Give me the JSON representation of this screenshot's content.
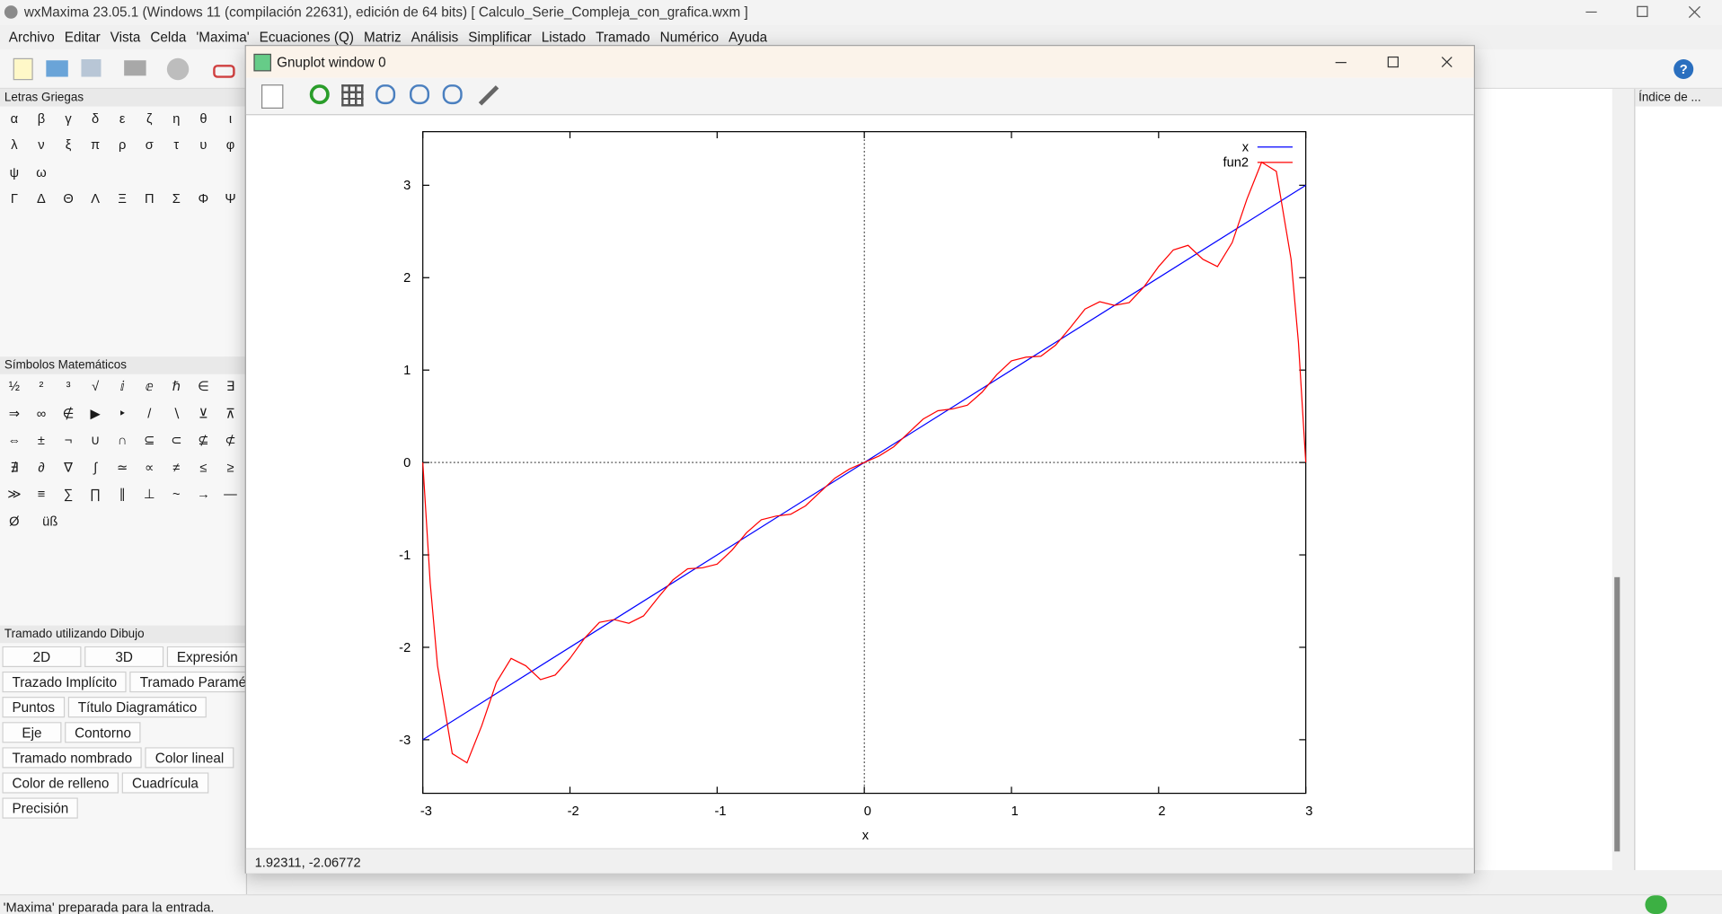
{
  "window": {
    "title": "wxMaxima 23.05.1 (Windows 11 (compilación 22631), edición de 64 bits)  [ Calculo_Serie_Compleja_con_grafica.wxm ]"
  },
  "menu": [
    "Archivo",
    "Editar",
    "Vista",
    "Celda",
    "'Maxima'",
    "Ecuaciones (Q)",
    "Matriz",
    "Análisis",
    "Simplificar",
    "Listado",
    "Tramado",
    "Numérico",
    "Ayuda"
  ],
  "panels": {
    "greek": {
      "title": "Letras Griegas",
      "rows": [
        [
          "α",
          "β",
          "γ",
          "δ",
          "ε",
          "ζ",
          "η",
          "θ",
          "ι"
        ],
        [
          "λ",
          "ν",
          "ξ",
          "π",
          "ρ",
          "σ",
          "τ",
          "υ",
          "φ"
        ],
        [
          "ψ",
          "ω"
        ],
        [
          "Γ",
          "Δ",
          "Θ",
          "Λ",
          "Ξ",
          "Π",
          "Σ",
          "Φ",
          "Ψ"
        ]
      ]
    },
    "symbols": {
      "title": "Símbolos Matemáticos",
      "rows": [
        [
          "½",
          "²",
          "³",
          "√",
          "ⅈ",
          "ⅇ",
          "ℏ",
          "∈",
          "∃"
        ],
        [
          "⇒",
          "∞",
          "∉",
          "▶",
          "‣",
          "/",
          "∖",
          "⊻",
          "⊼"
        ],
        [
          "⇔",
          "±",
          "¬",
          "∪",
          "∩",
          "⊆",
          "⊂",
          "⊈",
          "⊄"
        ],
        [
          "∄",
          "∂",
          "∇",
          "∫",
          "≃",
          "∝",
          "≠",
          "≤",
          "≥"
        ],
        [
          "≫",
          "≡",
          "∑",
          "∏",
          "∥",
          "⊥",
          "~",
          "→",
          "—"
        ],
        [
          "Ø",
          "üß"
        ]
      ]
    },
    "plot": {
      "title": "Tramado utilizando Dibujo",
      "rows": [
        [
          "2D",
          "3D",
          "Expresión"
        ],
        [
          "Trazado Implícito",
          "Tramado Paramé"
        ],
        [
          "Puntos",
          "Título Diagramático"
        ],
        [
          "Eje",
          "Contorno"
        ],
        [
          "Tramado nombrado",
          "Color lineal"
        ],
        [
          "Color de relleno",
          "Cuadrícula"
        ],
        [
          "Precisión"
        ]
      ]
    },
    "index": {
      "title": "Índice de ..."
    }
  },
  "gnuplot": {
    "title": "Gnuplot window 0",
    "status": "1.92311, -2.06772"
  },
  "status": "'Maxima' preparada para la entrada.",
  "chart_data": {
    "type": "line",
    "x_label": "x",
    "xlim": [
      -3,
      3
    ],
    "ylim": [
      -3.58,
      3.58
    ],
    "xticks": [
      -3,
      -2,
      -1,
      0,
      1,
      2,
      3
    ],
    "yticks": [
      -3,
      -2,
      -1,
      0,
      1,
      2,
      3
    ],
    "zero_axis": true,
    "legend": "upper-right",
    "series": [
      {
        "name": "x",
        "color": "#0000ff",
        "x": [
          -3,
          3
        ],
        "values": [
          -3,
          3
        ]
      },
      {
        "name": "fun2",
        "color": "#ff0000",
        "x": [
          -3,
          -2.95,
          -2.9,
          -2.8,
          -2.7,
          -2.6,
          -2.5,
          -2.4,
          -2.3,
          -2.2,
          -2.1,
          -2,
          -1.9,
          -1.8,
          -1.7,
          -1.6,
          -1.5,
          -1.4,
          -1.3,
          -1.2,
          -1.1,
          -1,
          -0.9,
          -0.8,
          -0.7,
          -0.6,
          -0.5,
          -0.4,
          -0.3,
          -0.2,
          -0.1,
          0,
          0.1,
          0.2,
          0.3,
          0.4,
          0.5,
          0.6,
          0.7,
          0.8,
          0.9,
          1,
          1.1,
          1.2,
          1.3,
          1.4,
          1.5,
          1.6,
          1.7,
          1.8,
          1.9,
          2,
          2.1,
          2.2,
          2.3,
          2.4,
          2.5,
          2.6,
          2.7,
          2.8,
          2.9,
          2.95,
          3
        ],
        "values": [
          0,
          -1.3,
          -2.2,
          -3.15,
          -3.25,
          -2.85,
          -2.38,
          -2.12,
          -2.2,
          -2.35,
          -2.3,
          -2.12,
          -1.9,
          -1.73,
          -1.7,
          -1.74,
          -1.66,
          -1.46,
          -1.27,
          -1.15,
          -1.14,
          -1.1,
          -0.95,
          -0.76,
          -0.62,
          -0.58,
          -0.56,
          -0.47,
          -0.32,
          -0.17,
          -0.07,
          0,
          0.07,
          0.17,
          0.32,
          0.47,
          0.56,
          0.58,
          0.62,
          0.76,
          0.95,
          1.1,
          1.14,
          1.15,
          1.27,
          1.46,
          1.66,
          1.74,
          1.7,
          1.73,
          1.9,
          2.12,
          2.3,
          2.35,
          2.2,
          2.12,
          2.38,
          2.85,
          3.25,
          3.15,
          2.2,
          1.3,
          0
        ]
      }
    ]
  }
}
